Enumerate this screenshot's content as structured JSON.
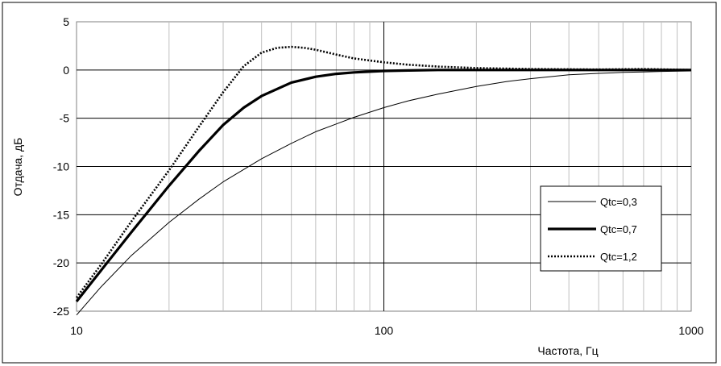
{
  "chart_data": {
    "type": "line",
    "xlabel": "Частота, Гц",
    "ylabel": "Отдача, дБ",
    "xscale": "log",
    "xlim": [
      10,
      1000
    ],
    "ylim": [
      -25,
      5
    ],
    "grid": true,
    "legend_position": "right",
    "x_ticks": [
      "10",
      "100",
      "1000"
    ],
    "y_ticks": [
      "5",
      "0",
      "-5",
      "-10",
      "-15",
      "-20",
      "-25"
    ],
    "series": [
      {
        "name": "Qtc=0,3",
        "style": "thin",
        "color": "#000000",
        "x": [
          10,
          12,
          15,
          20,
          25,
          30,
          40,
          50,
          60,
          70,
          80,
          100,
          120,
          150,
          200,
          250,
          300,
          400,
          500,
          600,
          700,
          800,
          1000
        ],
        "y": [
          -25.4,
          -22.5,
          -19.3,
          -15.8,
          -13.4,
          -11.6,
          -9.2,
          -7.6,
          -6.4,
          -5.6,
          -4.9,
          -3.9,
          -3.2,
          -2.5,
          -1.7,
          -1.2,
          -0.9,
          -0.5,
          -0.35,
          -0.25,
          -0.2,
          -0.15,
          -0.1
        ]
      },
      {
        "name": "Qtc=0,7",
        "style": "thick",
        "color": "#000000",
        "x": [
          10,
          12,
          15,
          20,
          25,
          30,
          35,
          40,
          50,
          60,
          70,
          80,
          100,
          120,
          150,
          200,
          300,
          500,
          1000
        ],
        "y": [
          -24.0,
          -20.8,
          -16.9,
          -12.0,
          -8.4,
          -5.7,
          -3.9,
          -2.7,
          -1.3,
          -0.7,
          -0.4,
          -0.25,
          -0.1,
          -0.05,
          0,
          0,
          0,
          0,
          0
        ]
      },
      {
        "name": "Qtc=1,2",
        "style": "dotted",
        "color": "#000000",
        "x": [
          10,
          12,
          15,
          20,
          25,
          30,
          35,
          40,
          45,
          50,
          55,
          60,
          70,
          80,
          100,
          120,
          150,
          200,
          300,
          500,
          700,
          1000
        ],
        "y": [
          -23.6,
          -20.2,
          -15.8,
          -10.4,
          -5.9,
          -2.3,
          0.4,
          1.8,
          2.3,
          2.4,
          2.3,
          2.1,
          1.6,
          1.2,
          0.8,
          0.55,
          0.35,
          0.2,
          0.1,
          0.05,
          0.1,
          0
        ]
      }
    ]
  }
}
